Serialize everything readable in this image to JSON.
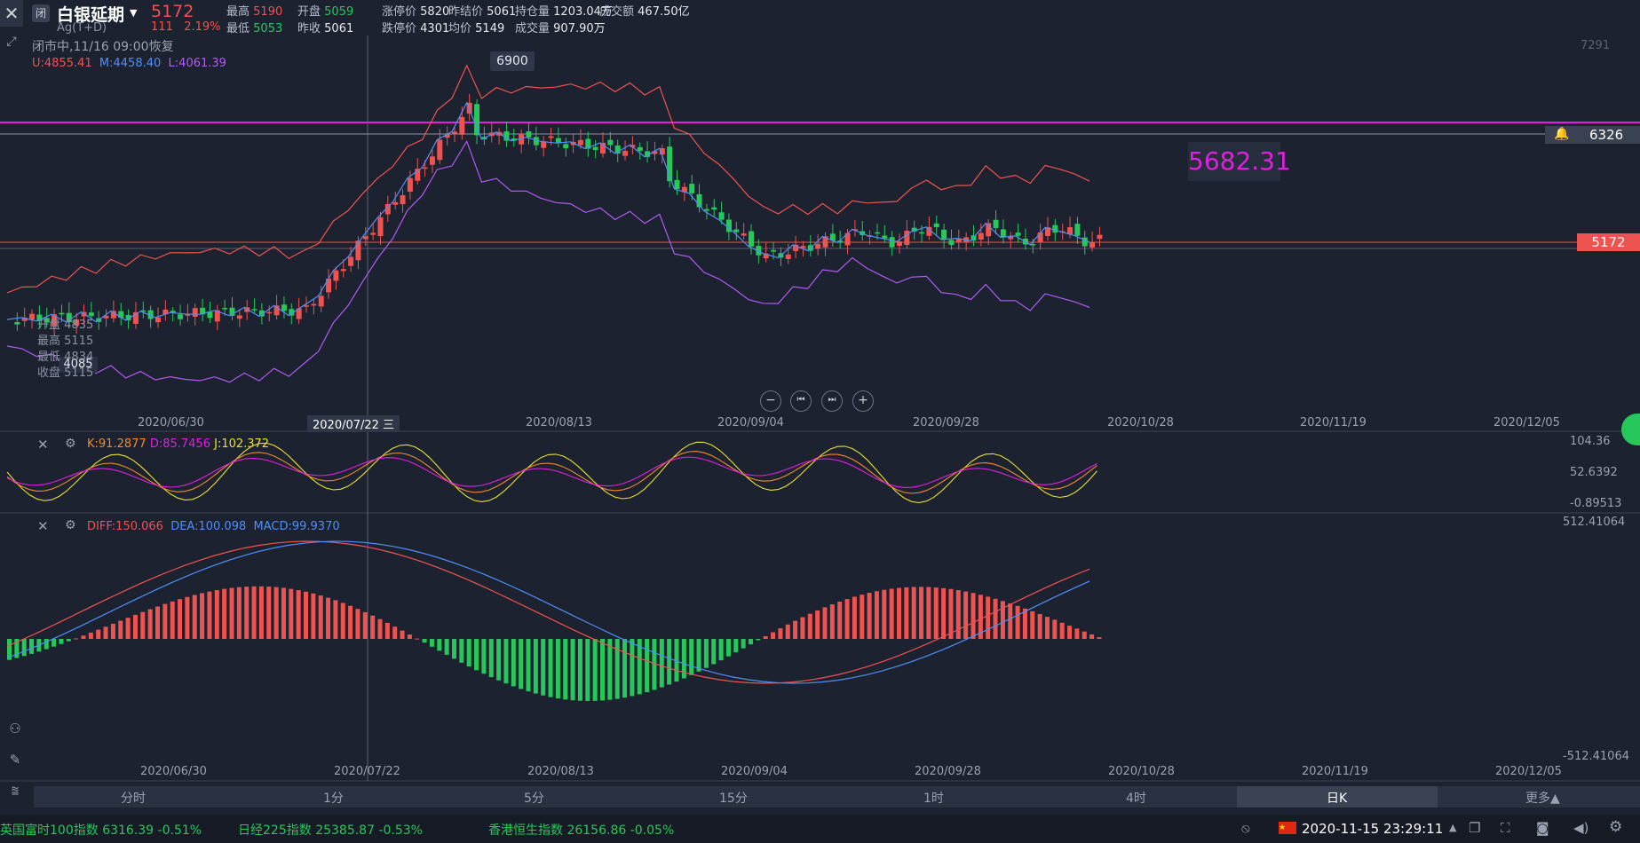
{
  "header": {
    "close_icon": "close-icon",
    "tag": "闭",
    "name": "白银延期",
    "code": "Ag(T+D)",
    "price": "5172",
    "change": "111",
    "change_pct": "2.19%",
    "stats": [
      {
        "label": "最高",
        "value": "5190",
        "color": "red"
      },
      {
        "label": "开盘",
        "value": "5059",
        "color": "grn"
      },
      {
        "label": "涨停价",
        "value": "5820",
        "color": "wht"
      },
      {
        "label": "昨结价",
        "value": "5061",
        "color": "wht"
      },
      {
        "label": "持仓量",
        "value": "1203.04万",
        "color": "wht"
      },
      {
        "label": "成交额",
        "value": "467.50亿",
        "color": "wht"
      },
      {
        "label": "最低",
        "value": "5053",
        "color": "grn"
      },
      {
        "label": "昨收",
        "value": "5061",
        "color": "wht"
      },
      {
        "label": "跌停价",
        "value": "4301",
        "color": "wht"
      },
      {
        "label": "均价",
        "value": "5149",
        "color": "wht"
      },
      {
        "label": "成交量",
        "value": "907.90万",
        "color": "wht"
      }
    ]
  },
  "status": "闭市中,11/16 09:00恢复",
  "boll": {
    "u": "U:4855.41",
    "m": "M:4458.40",
    "l": "L:4061.39"
  },
  "main_chart": {
    "peak_label": "6900",
    "right_top": "7291",
    "price_line_label": "6326",
    "current_label": "5172",
    "floating_price": "5682.31",
    "low_label": "4085",
    "ohlc": [
      {
        "label": "开盘",
        "value": "4835"
      },
      {
        "label": "最高",
        "value": "5115"
      },
      {
        "label": "最低",
        "value": "4834"
      },
      {
        "label": "收盘",
        "value": "5115"
      }
    ],
    "dates": [
      "2020/06/30",
      "2020/07/22 三",
      "2020/08/13",
      "2020/09/04",
      "2020/09/28",
      "2020/10/28",
      "2020/11/19",
      "2020/12/05"
    ]
  },
  "kdj": {
    "k": "K:91.2877",
    "d": "D:85.7456",
    "j": "J:102.372",
    "ticks": [
      "104.36",
      "52.6392",
      "-0.89513"
    ]
  },
  "macd": {
    "diff": "DIFF:150.066",
    "dea": "DEA:100.098",
    "macd": "MACD:99.9370",
    "ticks": [
      "512.41064",
      "-512.41064"
    ],
    "dates": [
      "2020/06/30",
      "2020/07/22",
      "2020/08/13",
      "2020/09/04",
      "2020/09/28",
      "2020/10/28",
      "2020/11/19",
      "2020/12/05"
    ]
  },
  "timeframes": [
    "分时",
    "1分",
    "5分",
    "15分",
    "1时",
    "4时",
    "日K",
    "更多▲"
  ],
  "ticker": [
    {
      "name": "英国富时100指数",
      "value": "6316.39",
      "chg": "-0.51%"
    },
    {
      "name": "日经225指数",
      "value": "25385.87",
      "chg": "-0.53%"
    },
    {
      "name": "香港恒生指数",
      "value": "26156.86",
      "chg": "-0.05%"
    }
  ],
  "clock": "2020-11-15 23:29:11",
  "colors": {
    "up": "#ef5350",
    "down": "#26c85a",
    "bg": "#1c2230",
    "magenta": "#e020e0"
  }
}
